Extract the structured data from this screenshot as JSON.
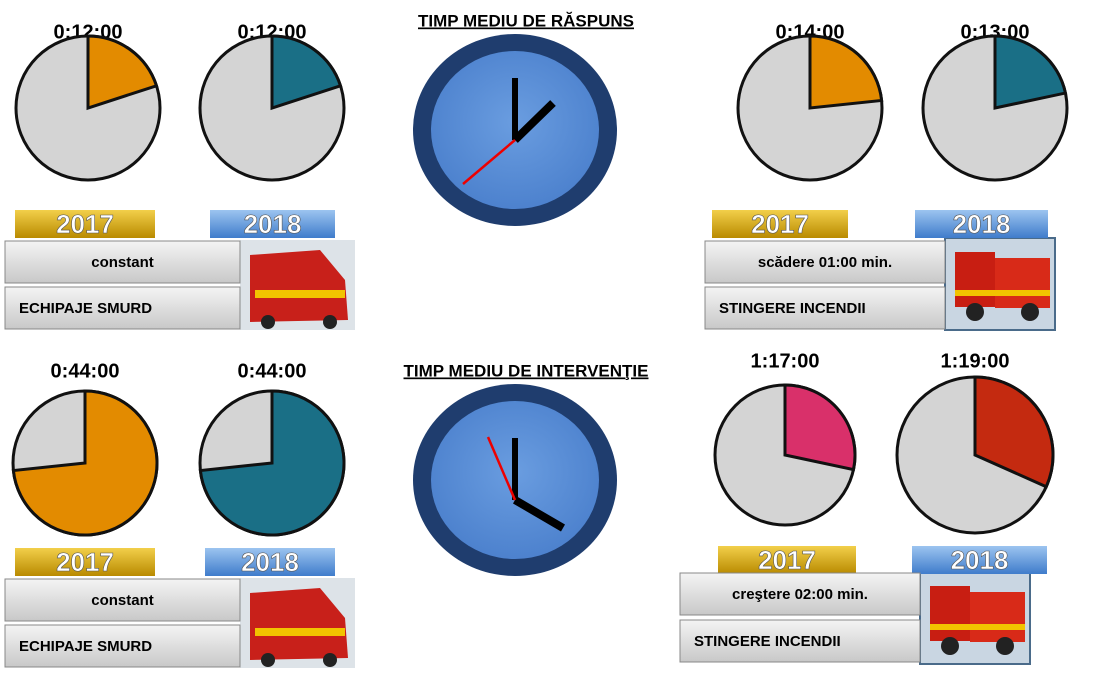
{
  "sections": [
    {
      "title": "TIMP MEDIU DE RĂSPUNS",
      "groups": [
        {
          "pies": [
            {
              "value": 12,
              "label": "0:12:00",
              "year": "2017",
              "color": "#e38b00"
            },
            {
              "value": 12,
              "label": "0:12:00",
              "year": "2018",
              "color": "#1a6f86"
            }
          ],
          "status": "constant",
          "name": "ECHIPAJE SMURD"
        },
        {
          "pies": [
            {
              "value": 14,
              "label": "0:14:00",
              "year": "2017",
              "color": "#e38b00"
            },
            {
              "value": 13,
              "label": "0:13:00",
              "year": "2018",
              "color": "#1a6f86"
            }
          ],
          "status": "scădere 01:00 min.",
          "name": "STINGERE INCENDII"
        }
      ]
    },
    {
      "title": "TIMP MEDIU DE INTERVENŢIE",
      "groups": [
        {
          "pies": [
            {
              "value": 44,
              "label": "0:44:00",
              "year": "2017",
              "color": "#e38b00"
            },
            {
              "value": 44,
              "label": "0:44:00",
              "year": "2018",
              "color": "#1a6f86"
            }
          ],
          "status": "constant",
          "name": "ECHIPAJE SMURD"
        },
        {
          "pies": [
            {
              "value": 77,
              "label": "1:17:00",
              "year": "2017",
              "color": "#d9306a"
            },
            {
              "value": 79,
              "label": "1:19:00",
              "year": "2018",
              "color": "#c42a10"
            }
          ],
          "status": "creştere 02:00 min.",
          "name": "STINGERE INCENDII"
        }
      ]
    }
  ]
}
